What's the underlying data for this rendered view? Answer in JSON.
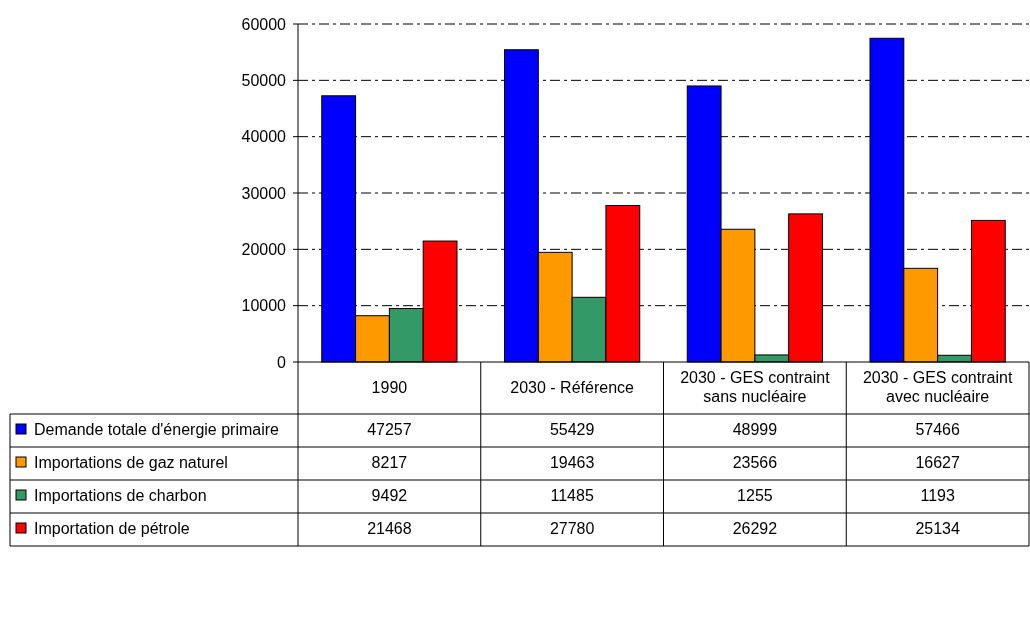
{
  "chart_data": {
    "type": "bar",
    "categories": [
      "1990",
      "2030 - Référence",
      "2030 - GES contraint sans nucléaire",
      "2030 - GES contraint avec nucléaire"
    ],
    "series": [
      {
        "name": "Demande totale d'énergie primaire",
        "color": "#0000ff",
        "values": [
          47257,
          55429,
          48999,
          57466
        ]
      },
      {
        "name": "Importations de gaz naturel",
        "color": "#ff9900",
        "values": [
          8217,
          19463,
          23566,
          16627
        ]
      },
      {
        "name": "Importations de charbon",
        "color": "#339966",
        "values": [
          9492,
          11485,
          1255,
          1193
        ]
      },
      {
        "name": "Importation de pétrole",
        "color": "#ff0000",
        "values": [
          21468,
          27780,
          26292,
          25134
        ]
      }
    ],
    "ylim": [
      0,
      60000
    ],
    "yticks": [
      0,
      10000,
      20000,
      30000,
      40000,
      50000,
      60000
    ],
    "grid": "y",
    "legend": "bottom left",
    "data_labels": true
  }
}
